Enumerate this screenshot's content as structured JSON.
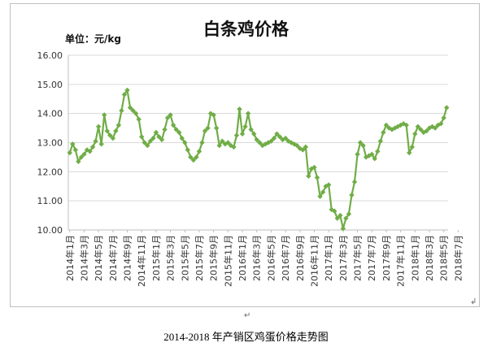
{
  "chart_data": {
    "type": "line",
    "title": "白条鸡价格",
    "unit_label": "单位：元/kg",
    "ylim": [
      10.0,
      16.0
    ],
    "yticks": [
      "16.00",
      "15.00",
      "14.00",
      "13.00",
      "12.00",
      "11.00",
      "10.00"
    ],
    "grid": true,
    "legend": "none",
    "color": "#70ad47",
    "xticks": [
      "2014年1月",
      "2014年3月",
      "2014年5月",
      "2014年7月",
      "2014年9月",
      "2014年11月",
      "2015年1月",
      "2015年3月",
      "2015年5月",
      "2015年7月",
      "2015年9月",
      "2015年11月",
      "2016年1月",
      "2016年3月",
      "2016年5月",
      "2016年7月",
      "2016年9月",
      "2016年11月",
      "2017年1月",
      "2017年3月",
      "2017年5月",
      "2017年7月",
      "2017年9月",
      "2017年11月",
      "2018年1月",
      "2018年3月",
      "2018年5月",
      "2018年7月"
    ],
    "series": [
      {
        "values": [
          12.65,
          12.95,
          12.75,
          12.35,
          12.5,
          12.6,
          12.75,
          12.7,
          12.85,
          13.05,
          13.55,
          12.95,
          13.95,
          13.4,
          13.25,
          13.15,
          13.4,
          13.6,
          14.1,
          14.65,
          14.8,
          14.2,
          14.1,
          14.0,
          13.8,
          13.2,
          13.0,
          12.9,
          13.05,
          13.15,
          13.35,
          13.2,
          13.1,
          13.45,
          13.85,
          13.95,
          13.6,
          13.45,
          13.35,
          13.15,
          13.0,
          12.75,
          12.5,
          12.4,
          12.5,
          12.7,
          13.0,
          13.4,
          13.5,
          14.0,
          13.95,
          13.5,
          12.9,
          13.05,
          12.95,
          13.0,
          12.9,
          12.85,
          13.25,
          14.15,
          13.3,
          13.55,
          14.0,
          13.45,
          13.3,
          13.1,
          13.0,
          12.9,
          12.95,
          13.0,
          13.05,
          13.15,
          13.3,
          13.2,
          13.1,
          13.15,
          13.05,
          13.0,
          12.95,
          12.9,
          12.8,
          12.75,
          12.85,
          11.85,
          12.1,
          12.15,
          11.8,
          11.15,
          11.3,
          11.5,
          11.55,
          10.7,
          10.65,
          10.4,
          10.5,
          10.05,
          10.4,
          10.55,
          11.2,
          11.65,
          12.6,
          13.0,
          12.9,
          12.5,
          12.55,
          12.6,
          12.45,
          12.7,
          13.05,
          13.35,
          13.6,
          13.5,
          13.45,
          13.5,
          13.55,
          13.6,
          13.65,
          13.6,
          12.65,
          12.85,
          13.3,
          13.55,
          13.45,
          13.35,
          13.4,
          13.5,
          13.55,
          13.5,
          13.6,
          13.65,
          13.85,
          14.2
        ]
      }
    ]
  },
  "caption": "2014-2018 年产销区鸡蛋价格走势图",
  "paragraph_mark": "↵",
  "corner_mark": "↲"
}
